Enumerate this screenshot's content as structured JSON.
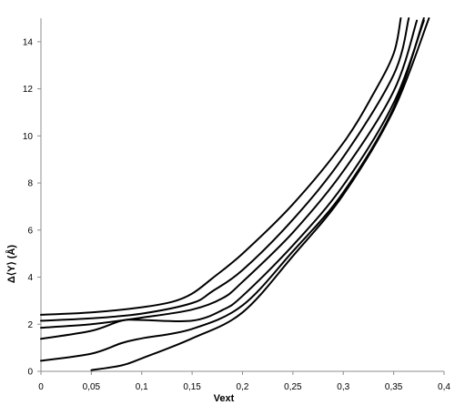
{
  "chart_data": {
    "type": "line",
    "xlabel": "Vext",
    "ylabel": "Δ⟨Y⟩ (Å)",
    "xlim": [
      0,
      0.4
    ],
    "ylim": [
      0,
      15
    ],
    "x_ticks": [
      0,
      0.05,
      0.1,
      0.15,
      0.2,
      0.25,
      0.3,
      0.35,
      0.4
    ],
    "x_tick_labels": [
      "0",
      "0,05",
      "0,1",
      "0,15",
      "0,2",
      "0,25",
      "0,3",
      "0,35",
      "0,4"
    ],
    "y_ticks": [
      0,
      2,
      4,
      6,
      8,
      10,
      12,
      14
    ],
    "y_tick_labels": [
      "0",
      "2",
      "4",
      "6",
      "8",
      "10",
      "12",
      "14"
    ],
    "grid": false,
    "legend": "none",
    "series": [
      {
        "x": [
          0,
          0.05,
          0.1,
          0.13,
          0.15,
          0.17,
          0.2,
          0.25,
          0.3,
          0.33,
          0.35,
          0.357
        ],
        "y": [
          2.4,
          2.5,
          2.72,
          2.95,
          3.3,
          3.95,
          5.0,
          7.1,
          9.7,
          11.8,
          13.5,
          15.0
        ]
      },
      {
        "x": [
          0,
          0.05,
          0.1,
          0.15,
          0.17,
          0.2,
          0.25,
          0.3,
          0.35,
          0.365
        ],
        "y": [
          2.15,
          2.25,
          2.45,
          2.9,
          3.4,
          4.3,
          6.45,
          9.1,
          12.6,
          15.0
        ]
      },
      {
        "x": [
          0,
          0.05,
          0.1,
          0.15,
          0.18,
          0.2,
          0.25,
          0.3,
          0.35,
          0.373
        ],
        "y": [
          1.85,
          2.0,
          2.28,
          2.62,
          3.1,
          3.8,
          5.9,
          8.5,
          11.9,
          14.9
        ]
      },
      {
        "x": [
          0,
          0.05,
          0.08,
          0.1,
          0.15,
          0.18,
          0.2,
          0.25,
          0.3,
          0.35,
          0.38
        ],
        "y": [
          1.38,
          1.72,
          2.15,
          2.18,
          2.15,
          2.6,
          3.2,
          5.35,
          7.9,
          11.4,
          14.9
        ]
      },
      {
        "x": [
          0,
          0.05,
          0.08,
          0.1,
          0.15,
          0.2,
          0.25,
          0.3,
          0.35,
          0.38
        ],
        "y": [
          0.45,
          0.75,
          1.2,
          1.4,
          1.8,
          2.8,
          5.1,
          7.6,
          11.2,
          15.0
        ]
      },
      {
        "x": [
          0.05,
          0.08,
          0.1,
          0.15,
          0.2,
          0.25,
          0.3,
          0.35,
          0.385
        ],
        "y": [
          0.05,
          0.25,
          0.55,
          1.4,
          2.5,
          4.9,
          7.5,
          11.1,
          15.0
        ]
      }
    ]
  }
}
